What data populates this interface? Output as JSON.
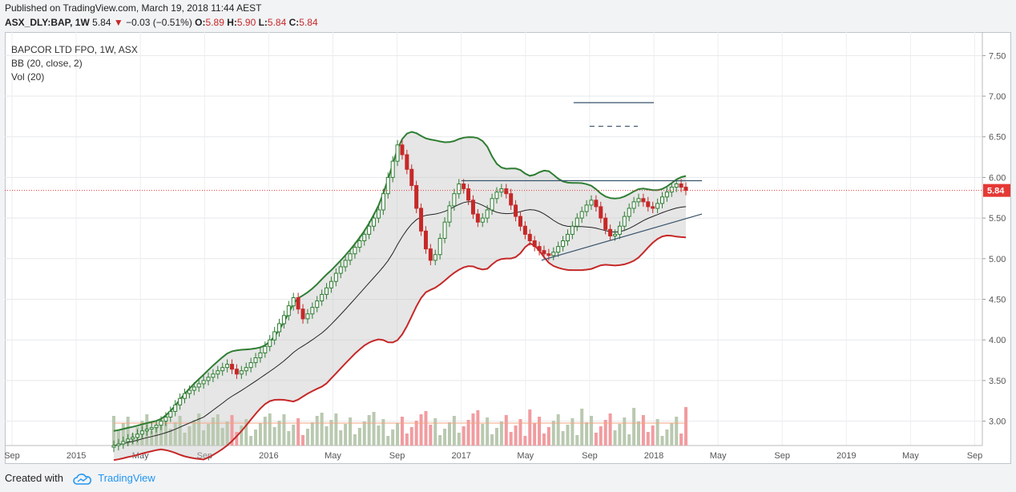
{
  "header": {
    "published": "Published on TradingView.com, March 19, 2018 11:44 AEST",
    "symbol": "ASX_DLY:BAP, 1W",
    "last": "5.84",
    "change": "−0.03 (−0.51%)",
    "o_label": "O:",
    "o_value": "5.89",
    "h_label": "H:",
    "h_value": "5.90",
    "l_label": "L:",
    "l_value": "5.84",
    "c_label": "C:",
    "c_value": "5.84"
  },
  "legend": {
    "title": "BAPCOR LTD FPO, 1W, ASX",
    "bb": "BB (20, close, 2)",
    "vol": "Vol (20)"
  },
  "footer": {
    "created": "Created with",
    "brand": "TradingView"
  },
  "colors": {
    "up": "#2e7d32",
    "down": "#c62828",
    "upper_band": "#2e7d32",
    "lower_band": "#c62828",
    "basis": "#222222",
    "trend_line": "#37536b",
    "vol_up": "#b9c9b0",
    "vol_down": "#f19ca0",
    "vol_ma": "#f4a582",
    "price_tag": "#e53935"
  },
  "chart_data": {
    "type": "candlestick",
    "timeframe": "1W",
    "y_ticks": [
      "7.50",
      "7.00",
      "6.50",
      "6.00",
      "5.50",
      "5.00",
      "4.50",
      "4.00",
      "3.50",
      "3.00"
    ],
    "ylim": [
      2.7,
      7.75
    ],
    "x_ticks": [
      "Sep",
      "2015",
      "May",
      "Sep",
      "2016",
      "May",
      "Sep",
      "2017",
      "May",
      "Sep",
      "2018",
      "May",
      "Sep",
      "2019",
      "May",
      "Sep"
    ],
    "last_price": "5.84",
    "close": [
      2.7,
      2.72,
      2.75,
      2.78,
      2.8,
      2.84,
      2.88,
      2.9,
      2.92,
      2.95,
      3.0,
      3.05,
      3.12,
      3.2,
      3.28,
      3.34,
      3.38,
      3.42,
      3.46,
      3.5,
      3.54,
      3.58,
      3.62,
      3.66,
      3.7,
      3.64,
      3.58,
      3.62,
      3.66,
      3.72,
      3.78,
      3.84,
      3.92,
      4.0,
      4.1,
      4.2,
      4.3,
      4.42,
      4.52,
      4.38,
      4.26,
      4.32,
      4.4,
      4.48,
      4.56,
      4.64,
      4.72,
      4.82,
      4.9,
      4.98,
      5.06,
      5.14,
      5.22,
      5.3,
      5.4,
      5.5,
      5.6,
      5.8,
      6.0,
      6.2,
      6.4,
      6.28,
      6.1,
      5.9,
      5.62,
      5.34,
      5.12,
      4.98,
      5.05,
      5.25,
      5.45,
      5.65,
      5.8,
      5.92,
      5.86,
      5.72,
      5.55,
      5.45,
      5.5,
      5.6,
      5.74,
      5.82,
      5.86,
      5.8,
      5.66,
      5.52,
      5.4,
      5.3,
      5.22,
      5.15,
      5.1,
      5.06,
      5.04,
      5.08,
      5.15,
      5.22,
      5.3,
      5.4,
      5.5,
      5.58,
      5.66,
      5.72,
      5.64,
      5.5,
      5.36,
      5.28,
      5.3,
      5.4,
      5.52,
      5.62,
      5.7,
      5.74,
      5.7,
      5.64,
      5.62,
      5.68,
      5.76,
      5.82,
      5.88,
      5.92,
      5.88,
      5.84
    ],
    "lines": [
      {
        "label": "resistance",
        "x0": "2017-01",
        "y0": 5.96,
        "x1": "2018-04",
        "y1": 5.96
      },
      {
        "label": "support",
        "x0": "2017-06",
        "y0": 4.98,
        "x1": "2018-04",
        "y1": 5.55
      },
      {
        "label": "target-1",
        "x0": "2017-08",
        "y0": 6.92,
        "x1": "2018-01",
        "y1": 6.92
      },
      {
        "label": "target-2",
        "x0": "2017-09",
        "y0": 6.63,
        "x1": "2017-12",
        "y1": 6.63
      }
    ],
    "series": [
      {
        "name": "BB (20, close, 2)"
      },
      {
        "name": "Vol (20)"
      }
    ]
  }
}
